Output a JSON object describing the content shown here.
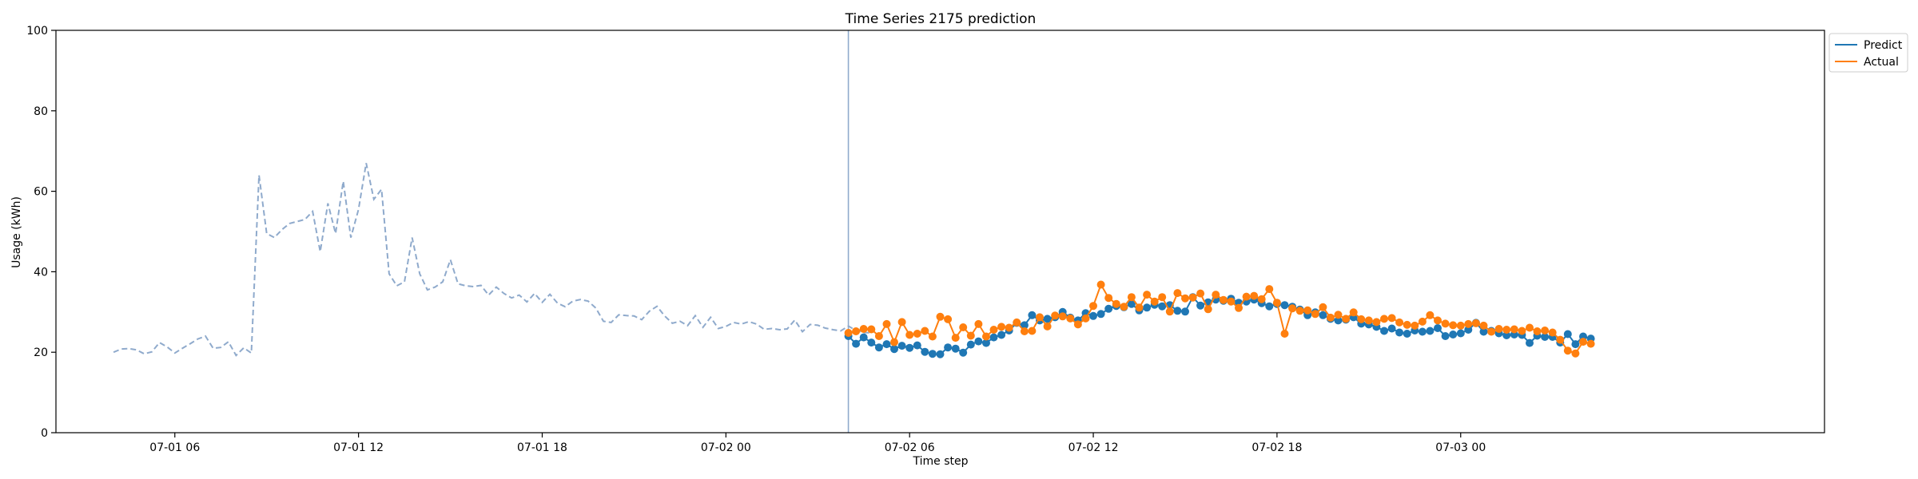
{
  "chart_data": {
    "type": "line",
    "title": "Time Series 2175 prediction",
    "xlabel": "Time step",
    "ylabel": "Usage (kWh)",
    "ylim": [
      0,
      100
    ],
    "yticks": [
      0,
      20,
      40,
      60,
      80,
      100
    ],
    "xlim": [
      "2023-07-01 02:07",
      "2023-07-03 11:53"
    ],
    "xticks": [
      {
        "t": "2023-07-01 06:00",
        "label": "07-01 06"
      },
      {
        "t": "2023-07-01 12:00",
        "label": "07-01 12"
      },
      {
        "t": "2023-07-01 18:00",
        "label": "07-01 18"
      },
      {
        "t": "2023-07-02 00:00",
        "label": "07-02 00"
      },
      {
        "t": "2023-07-02 06:00",
        "label": "07-02 06"
      },
      {
        "t": "2023-07-02 12:00",
        "label": "07-02 12"
      },
      {
        "t": "2023-07-02 18:00",
        "label": "07-02 18"
      },
      {
        "t": "2023-07-03 00:00",
        "label": "07-03 00"
      }
    ],
    "forecast_start": "2023-07-02 04:00",
    "grid": false,
    "legend_position": "outside-top-right",
    "colors": {
      "history": "#8faacc",
      "predict": "#1f77b4",
      "actual": "#ff7f0e",
      "divider": "#8faacc"
    },
    "history": {
      "start": "2023-07-01 04:00",
      "interval_minutes": 15,
      "values": [
        20.0,
        20.8,
        20.9,
        20.6,
        19.6,
        20.1,
        22.4,
        21.3,
        19.8,
        21.0,
        22.1,
        23.3,
        24.0,
        21.0,
        21.2,
        22.6,
        19.2,
        21.1,
        19.8,
        64.0,
        49.5,
        48.5,
        50.5,
        52.0,
        52.5,
        53.0,
        55.0,
        45.0,
        57.0,
        49.5,
        62.5,
        48.5,
        55.5,
        67.0,
        58.0,
        60.5,
        39.5,
        36.5,
        37.5,
        48.5,
        39.5,
        35.5,
        36.2,
        37.5,
        43.0,
        37.0,
        36.5,
        36.3,
        36.6,
        34.2,
        36.2,
        34.6,
        33.5,
        34.2,
        32.5,
        34.6,
        32.4,
        34.4,
        32.2,
        31.3,
        32.7,
        33.1,
        32.7,
        31.0,
        27.7,
        27.4,
        29.3,
        29.1,
        29.0,
        28.1,
        30.2,
        31.4,
        29.0,
        27.2,
        27.7,
        26.6,
        29.1,
        26.2,
        28.7,
        25.9,
        26.4,
        27.4,
        27.0,
        27.6,
        27.0,
        25.7,
        25.9,
        25.6,
        25.8,
        28.0,
        25.1,
        26.9,
        26.7,
        26.0,
        25.6,
        25.3,
        26.5,
        25.4,
        24.9,
        24.8
      ]
    },
    "series": [
      {
        "name": "Predict",
        "start": "2023-07-02 04:00",
        "interval_minutes": 15,
        "values": [
          24.0,
          22.1,
          23.7,
          22.4,
          21.2,
          22.0,
          20.8,
          21.6,
          21.1,
          21.7,
          20.1,
          19.6,
          19.5,
          21.2,
          20.9,
          19.9,
          21.9,
          22.7,
          22.3,
          23.7,
          24.3,
          25.4,
          27.3,
          26.7,
          29.2,
          27.9,
          28.3,
          28.7,
          30.0,
          28.6,
          27.9,
          29.7,
          29.0,
          29.5,
          30.8,
          31.5,
          31.2,
          32.0,
          30.4,
          31.1,
          31.8,
          31.4,
          31.7,
          30.3,
          30.1,
          33.7,
          31.6,
          32.4,
          33.1,
          32.8,
          33.3,
          32.3,
          32.6,
          33.1,
          32.2,
          31.4,
          32.0,
          31.7,
          31.3,
          30.6,
          29.2,
          29.9,
          29.2,
          28.3,
          27.9,
          28.1,
          28.7,
          27.1,
          26.9,
          26.3,
          25.3,
          25.9,
          24.9,
          24.6,
          25.4,
          25.1,
          25.3,
          26.0,
          24.0,
          24.4,
          24.7,
          25.6,
          27.3,
          25.1,
          25.3,
          24.7,
          24.2,
          24.4,
          24.3,
          22.3,
          24.1,
          23.8,
          23.8,
          22.4,
          24.5,
          22.0,
          23.9,
          23.4
        ]
      },
      {
        "name": "Actual",
        "start": "2023-07-02 04:00",
        "interval_minutes": 15,
        "values": [
          24.8,
          25.2,
          25.8,
          25.7,
          24.0,
          27.0,
          22.5,
          27.5,
          24.3,
          24.6,
          25.3,
          23.9,
          28.8,
          28.2,
          23.6,
          26.2,
          24.1,
          27.0,
          23.9,
          25.6,
          26.3,
          26.1,
          27.4,
          25.2,
          25.3,
          28.7,
          26.4,
          29.1,
          28.9,
          28.4,
          26.9,
          28.4,
          31.5,
          36.8,
          33.5,
          32.0,
          31.3,
          33.7,
          31.1,
          34.3,
          32.6,
          33.7,
          30.1,
          34.7,
          33.4,
          33.6,
          34.6,
          30.7,
          34.3,
          33.0,
          32.6,
          31.0,
          33.8,
          34.0,
          33.2,
          35.7,
          32.3,
          24.6,
          30.9,
          30.3,
          30.4,
          29.5,
          31.2,
          28.6,
          29.3,
          28.3,
          29.9,
          28.2,
          27.9,
          27.5,
          28.3,
          28.5,
          27.4,
          26.8,
          26.6,
          27.6,
          29.2,
          27.9,
          27.1,
          26.7,
          26.6,
          27.0,
          27.2,
          26.6,
          25.1,
          25.8,
          25.6,
          25.7,
          25.3,
          26.1,
          25.2,
          25.4,
          24.9,
          23.1,
          20.4,
          19.7,
          22.6,
          22.1
        ]
      }
    ]
  }
}
